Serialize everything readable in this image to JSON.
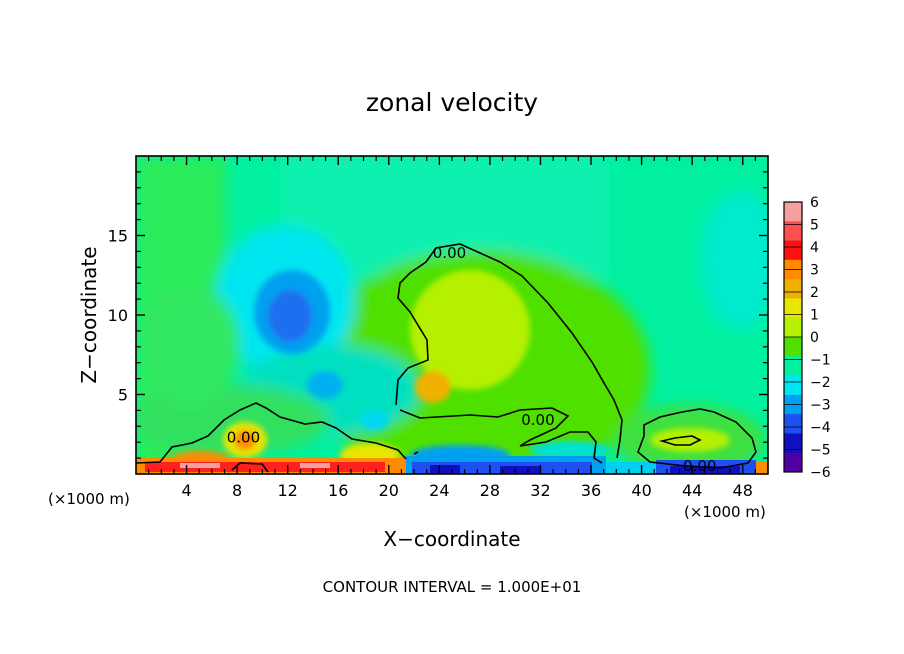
{
  "chart_data": {
    "type": "heatmap",
    "title": "zonal velocity",
    "xlabel": "X−coordinate",
    "ylabel": "Z−coordinate",
    "x_unit_left": "(×1000 m)",
    "x_unit_right": "(×1000 m)",
    "xlim": [
      0,
      50
    ],
    "ylim": [
      0,
      20
    ],
    "x_ticks": [
      4,
      8,
      12,
      16,
      20,
      24,
      28,
      32,
      36,
      40,
      44,
      48
    ],
    "y_ticks": [
      5,
      10,
      15
    ],
    "colorbar": {
      "levels": [
        6,
        5,
        4,
        3,
        2,
        1,
        0,
        -1,
        -2,
        -3,
        -4,
        -5,
        -6
      ],
      "labels": [
        "6",
        "5",
        "4",
        "3",
        "2",
        "1",
        "0",
        "−1",
        "−2",
        "−3",
        "−4",
        "−5",
        "−6"
      ],
      "colors": [
        "#f4a0a0",
        "#ff5050",
        "#ff1010",
        "#ff8c00",
        "#f0b000",
        "#e6e600",
        "#b4f000",
        "#50e000",
        "#00f0a0",
        "#00e6f0",
        "#00a0f0",
        "#1e50f0",
        "#1010c0",
        "#5000a0"
      ]
    },
    "contour_labels": [
      {
        "text": "0.00",
        "x": 8.5,
        "y": 2.3
      },
      {
        "text": "0.00",
        "x": 24.8,
        "y": 13.9
      },
      {
        "text": "0.00",
        "x": 31.8,
        "y": 3.4
      },
      {
        "text": "0.00",
        "x": 44.6,
        "y": 0.5
      }
    ],
    "features": [
      {
        "x": 12,
        "z": 10.5,
        "value": -2.5
      },
      {
        "x": 15.5,
        "z": 5,
        "value": -1.5
      },
      {
        "x": 24.5,
        "z": 5,
        "value": 2.5
      },
      {
        "x": 27,
        "z": 8.5,
        "value": 1.5
      },
      {
        "x": 9,
        "z": 2,
        "value": 3
      },
      {
        "x": 5,
        "z": 0.5,
        "value": 5
      },
      {
        "x": 13,
        "z": 0.5,
        "value": 5
      },
      {
        "x": 18,
        "z": 1,
        "value": 4
      },
      {
        "x": 26,
        "z": 0.6,
        "value": -4
      },
      {
        "x": 34,
        "z": 0.5,
        "value": -3.5
      },
      {
        "x": 44,
        "z": 0.5,
        "value": -4
      },
      {
        "x": 45,
        "z": 13,
        "value": -1
      },
      {
        "x": 6,
        "z": 16,
        "value": 0
      }
    ],
    "contour_interval_note": "CONTOUR INTERVAL = 1.000E+01"
  }
}
